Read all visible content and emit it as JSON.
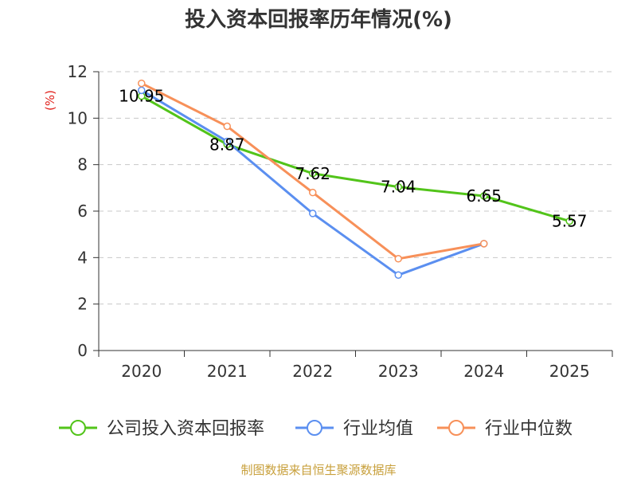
{
  "chart_data": {
    "type": "line",
    "title": "投入资本回报率历年情况(%)",
    "ylabel": "(%)",
    "xlabel": "",
    "categories": [
      "2020",
      "2021",
      "2022",
      "2023",
      "2024",
      "2025"
    ],
    "ylim": [
      0,
      12
    ],
    "yticks": [
      0,
      2,
      4,
      6,
      8,
      10,
      12
    ],
    "grid": true,
    "legend_position": "bottom",
    "series": [
      {
        "name": "公司投入资本回报率",
        "color": "#52c41a",
        "values": [
          10.95,
          8.87,
          7.62,
          7.04,
          6.65,
          5.57
        ],
        "labels": [
          "10.95",
          "8.87",
          "7.62",
          "7.04",
          "6.65",
          "5.57"
        ]
      },
      {
        "name": "行业均值",
        "color": "#5b8ff0",
        "values": [
          11.2,
          9.0,
          5.9,
          3.25,
          4.6,
          null
        ]
      },
      {
        "name": "行业中位数",
        "color": "#f79059",
        "values": [
          11.5,
          9.65,
          6.8,
          3.95,
          4.6,
          null
        ]
      }
    ],
    "source": "制图数据来自恒生聚源数据库"
  }
}
